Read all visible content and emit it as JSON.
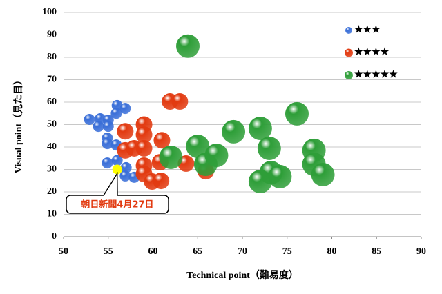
{
  "chart_data": {
    "type": "scatter",
    "xlabel": "Technical point（難易度）",
    "ylabel": "Visual point（見た目）",
    "xlim": [
      50,
      90
    ],
    "xticks": [
      50,
      55,
      60,
      65,
      70,
      75,
      80,
      85,
      90
    ],
    "ylim": [
      0,
      100
    ],
    "yticks": [
      0,
      10,
      20,
      30,
      40,
      50,
      60,
      70,
      80,
      90,
      100
    ],
    "grid": true,
    "legend": "upper right",
    "series": [
      {
        "name": "★★★",
        "color": "#3a6fd8",
        "x": [
          52.9,
          54.1,
          55.0,
          53.9,
          55.0,
          56.0,
          56.9,
          55.9,
          54.9,
          54.9,
          55.9,
          54.9,
          56.0,
          57.0,
          56.9,
          57.9
        ],
        "y": [
          52.3,
          52.6,
          52.0,
          49.2,
          49.2,
          58.5,
          57.2,
          55.0,
          44.0,
          41.5,
          40.9,
          32.9,
          34.0,
          30.8,
          27.1,
          26.5
        ]
      },
      {
        "name": "★★★★",
        "color": "#e23a10",
        "x": [
          56.9,
          59.0,
          59.0,
          56.9,
          57.9,
          59.0,
          59.0,
          59.0,
          59.9,
          60.9,
          61.0,
          60.8,
          61.9,
          63.0,
          63.7,
          65.9
        ],
        "y": [
          47.0,
          50.0,
          45.5,
          38.5,
          39.4,
          39.4,
          31.7,
          28.0,
          24.6,
          24.9,
          43.0,
          33.2,
          60.3,
          60.3,
          32.6,
          29.2
        ]
      },
      {
        "name": "★★★★★",
        "color": "#2e9e38",
        "x": [
          63.9,
          62.0,
          65.0,
          65.9,
          67.1,
          69.0,
          72.0,
          73.0,
          73.2,
          74.2,
          72.0,
          76.1,
          78.0,
          78.0,
          79.0
        ],
        "y": [
          85.0,
          35.4,
          40.3,
          32.3,
          36.3,
          46.8,
          48.3,
          39.4,
          28.6,
          26.8,
          24.6,
          54.8,
          38.5,
          32.3,
          27.7
        ]
      }
    ],
    "annotation": {
      "text": "朝日新聞4月27日",
      "x": 56,
      "y": 30,
      "color": "#ffff00"
    }
  }
}
